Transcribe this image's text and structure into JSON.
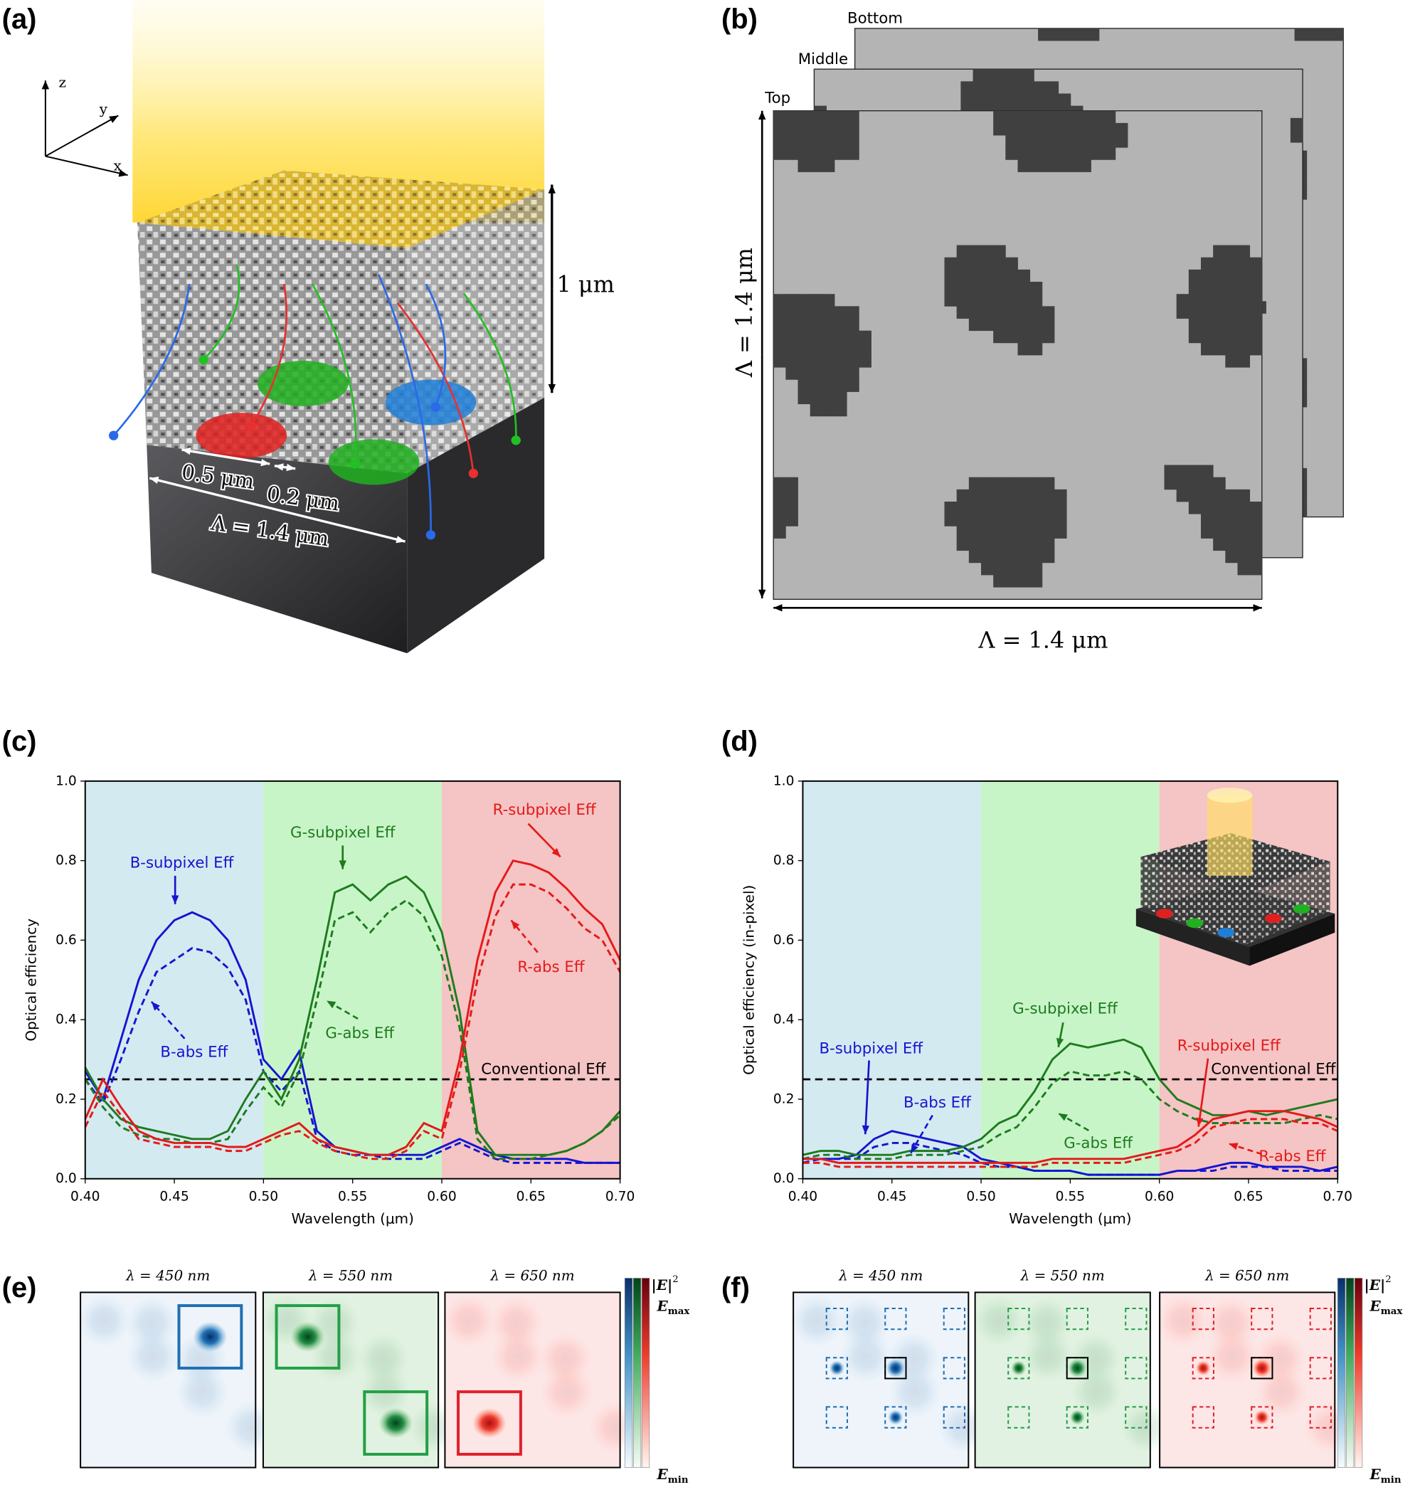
{
  "figure": {
    "a": {
      "label": "(a)",
      "axes": [
        "z",
        "y",
        "x"
      ],
      "height": "1 μm",
      "pixel": "0.5 μm",
      "gap": "0.2 μm",
      "period": "Λ = 1.4 μm"
    },
    "b": {
      "label": "(b)",
      "layers": [
        "Bottom",
        "Middle",
        "Top"
      ],
      "period_vertical": "Λ = 1.4 μm",
      "period_horizontal": "Λ = 1.4 μm"
    },
    "e": {
      "label": "(e)",
      "titles": [
        "λ =  450 nm",
        "λ =  550 nm",
        "λ =  650 nm"
      ],
      "colorbar": {
        "field": "|E|",
        "exponent": "2",
        "symbol": "E",
        "max_sub": "max",
        "min_sub": "min"
      }
    },
    "f": {
      "label": "(f)",
      "titles": [
        "λ =  450 nm",
        "λ =  550 nm",
        "λ =  650 nm"
      ],
      "colorbar": {
        "field": "|E|",
        "exponent": "2",
        "symbol": "E",
        "max_sub": "max",
        "min_sub": "min"
      }
    }
  },
  "chart_data": [
    {
      "type": "line",
      "panel_label": "(c)",
      "xlabel": "Wavelength (μm)",
      "ylabel": "Optical efficiency",
      "x": [
        0.4,
        0.41,
        0.42,
        0.43,
        0.44,
        0.45,
        0.46,
        0.47,
        0.48,
        0.49,
        0.5,
        0.51,
        0.52,
        0.53,
        0.54,
        0.55,
        0.56,
        0.57,
        0.58,
        0.59,
        0.6,
        0.61,
        0.62,
        0.63,
        0.64,
        0.65,
        0.66,
        0.67,
        0.68,
        0.69,
        0.7
      ],
      "xlim": [
        0.4,
        0.7
      ],
      "ylim": [
        0,
        1
      ],
      "xticks": [
        {
          "value": 0.4,
          "label": "0.40"
        },
        {
          "value": 0.45,
          "label": "0.45"
        },
        {
          "value": 0.5,
          "label": "0.50"
        },
        {
          "value": 0.55,
          "label": "0.55"
        },
        {
          "value": 0.6,
          "label": "0.60"
        },
        {
          "value": 0.65,
          "label": "0.65"
        },
        {
          "value": 0.7,
          "label": "0.70"
        }
      ],
      "yticks": [
        {
          "value": 0,
          "label": "0.0"
        },
        0.2,
        0.4,
        0.6,
        0.8,
        {
          "value": 1,
          "label": "1.0"
        }
      ],
      "bands": [
        {
          "from": 0.4,
          "to": 0.5,
          "color": "#d4eaf1"
        },
        {
          "from": 0.5,
          "to": 0.6,
          "color": "#c8f5c8"
        },
        {
          "from": 0.6,
          "to": 0.7,
          "color": "#f5c4c4"
        }
      ],
      "reference": {
        "value": 0.25,
        "label": "Conventional Eff",
        "color": "#000000"
      },
      "series": [
        {
          "name": "B-subpixel Eff",
          "color": "#1515d0",
          "dash": false,
          "values": [
            0.27,
            0.2,
            0.35,
            0.5,
            0.6,
            0.65,
            0.67,
            0.65,
            0.6,
            0.5,
            0.3,
            0.25,
            0.32,
            0.12,
            0.08,
            0.07,
            0.06,
            0.06,
            0.06,
            0.06,
            0.08,
            0.1,
            0.08,
            0.06,
            0.05,
            0.05,
            0.05,
            0.05,
            0.04,
            0.04,
            0.04
          ]
        },
        {
          "name": "B-abs Eff",
          "color": "#1515d0",
          "dash": true,
          "values": [
            0.25,
            0.19,
            0.3,
            0.42,
            0.52,
            0.55,
            0.58,
            0.57,
            0.53,
            0.45,
            0.27,
            0.22,
            0.27,
            0.1,
            0.07,
            0.06,
            0.06,
            0.05,
            0.05,
            0.05,
            0.07,
            0.09,
            0.07,
            0.05,
            0.04,
            0.04,
            0.04,
            0.04,
            0.04,
            0.04,
            0.04
          ]
        },
        {
          "name": "G-subpixel Eff",
          "color": "#1e7b1e",
          "dash": false,
          "values": [
            0.28,
            0.2,
            0.15,
            0.13,
            0.12,
            0.11,
            0.1,
            0.1,
            0.12,
            0.2,
            0.27,
            0.2,
            0.3,
            0.5,
            0.72,
            0.74,
            0.7,
            0.74,
            0.76,
            0.72,
            0.62,
            0.42,
            0.12,
            0.06,
            0.06,
            0.06,
            0.06,
            0.07,
            0.09,
            0.12,
            0.17
          ]
        },
        {
          "name": "G-abs Eff",
          "color": "#1e7b1e",
          "dash": true,
          "values": [
            0.25,
            0.18,
            0.13,
            0.11,
            0.1,
            0.1,
            0.09,
            0.09,
            0.1,
            0.17,
            0.23,
            0.18,
            0.27,
            0.45,
            0.65,
            0.67,
            0.62,
            0.67,
            0.7,
            0.66,
            0.56,
            0.38,
            0.1,
            0.05,
            0.05,
            0.05,
            0.06,
            0.07,
            0.09,
            0.12,
            0.16
          ]
        },
        {
          "name": "R-subpixel Eff",
          "color": "#e41a1a",
          "dash": false,
          "values": [
            0.15,
            0.25,
            0.18,
            0.12,
            0.1,
            0.09,
            0.09,
            0.09,
            0.08,
            0.08,
            0.1,
            0.12,
            0.14,
            0.1,
            0.08,
            0.07,
            0.06,
            0.06,
            0.08,
            0.14,
            0.12,
            0.3,
            0.55,
            0.72,
            0.8,
            0.79,
            0.77,
            0.73,
            0.68,
            0.64,
            0.55
          ]
        },
        {
          "name": "R-abs Eff",
          "color": "#e41a1a",
          "dash": true,
          "values": [
            0.13,
            0.22,
            0.16,
            0.1,
            0.09,
            0.08,
            0.08,
            0.08,
            0.07,
            0.07,
            0.09,
            0.11,
            0.12,
            0.09,
            0.07,
            0.06,
            0.05,
            0.05,
            0.07,
            0.12,
            0.1,
            0.27,
            0.5,
            0.66,
            0.74,
            0.74,
            0.72,
            0.68,
            0.63,
            0.6,
            0.52
          ]
        }
      ]
    },
    {
      "type": "line",
      "panel_label": "(d)",
      "xlabel": "Wavelength (μm)",
      "ylabel": "Optical efficiency (in-pixel)",
      "x": [
        0.4,
        0.41,
        0.42,
        0.43,
        0.44,
        0.45,
        0.46,
        0.47,
        0.48,
        0.49,
        0.5,
        0.51,
        0.52,
        0.53,
        0.54,
        0.55,
        0.56,
        0.57,
        0.58,
        0.59,
        0.6,
        0.61,
        0.62,
        0.63,
        0.64,
        0.65,
        0.66,
        0.67,
        0.68,
        0.69,
        0.7
      ],
      "xlim": [
        0.4,
        0.7
      ],
      "ylim": [
        0,
        1
      ],
      "xticks": [
        {
          "value": 0.4,
          "label": "0.40"
        },
        {
          "value": 0.45,
          "label": "0.45"
        },
        {
          "value": 0.5,
          "label": "0.50"
        },
        {
          "value": 0.55,
          "label": "0.55"
        },
        {
          "value": 0.6,
          "label": "0.60"
        },
        {
          "value": 0.65,
          "label": "0.65"
        },
        {
          "value": 0.7,
          "label": "0.70"
        }
      ],
      "yticks": [
        {
          "value": 0,
          "label": "0.0"
        },
        0.2,
        0.4,
        0.6,
        0.8,
        {
          "value": 1,
          "label": "1.0"
        }
      ],
      "bands": [
        {
          "from": 0.4,
          "to": 0.5,
          "color": "#d4eaf1"
        },
        {
          "from": 0.5,
          "to": 0.6,
          "color": "#c8f5c8"
        },
        {
          "from": 0.6,
          "to": 0.7,
          "color": "#f5c4c4"
        }
      ],
      "reference": {
        "value": 0.25,
        "label": "Conventional Eff",
        "color": "#000000"
      },
      "series": [
        {
          "name": "B-subpixel Eff",
          "color": "#1515d0",
          "dash": false,
          "values": [
            0.05,
            0.05,
            0.05,
            0.06,
            0.1,
            0.12,
            0.11,
            0.1,
            0.09,
            0.08,
            0.05,
            0.04,
            0.03,
            0.02,
            0.02,
            0.02,
            0.01,
            0.01,
            0.01,
            0.01,
            0.01,
            0.02,
            0.02,
            0.03,
            0.04,
            0.04,
            0.03,
            0.03,
            0.03,
            0.02,
            0.03
          ]
        },
        {
          "name": "B-abs Eff",
          "color": "#1515d0",
          "dash": true,
          "values": [
            0.04,
            0.05,
            0.05,
            0.05,
            0.08,
            0.09,
            0.09,
            0.08,
            0.07,
            0.06,
            0.04,
            0.03,
            0.03,
            0.02,
            0.02,
            0.02,
            0.01,
            0.01,
            0.01,
            0.01,
            0.01,
            0.02,
            0.02,
            0.02,
            0.03,
            0.03,
            0.03,
            0.02,
            0.02,
            0.02,
            0.02
          ]
        },
        {
          "name": "G-subpixel Eff",
          "color": "#1e7b1e",
          "dash": false,
          "values": [
            0.06,
            0.07,
            0.07,
            0.06,
            0.06,
            0.06,
            0.07,
            0.07,
            0.07,
            0.08,
            0.1,
            0.14,
            0.16,
            0.22,
            0.3,
            0.34,
            0.33,
            0.34,
            0.35,
            0.33,
            0.25,
            0.2,
            0.18,
            0.16,
            0.16,
            0.17,
            0.16,
            0.17,
            0.18,
            0.19,
            0.2
          ]
        },
        {
          "name": "G-abs Eff",
          "color": "#1e7b1e",
          "dash": true,
          "values": [
            0.05,
            0.06,
            0.06,
            0.05,
            0.05,
            0.05,
            0.06,
            0.06,
            0.06,
            0.07,
            0.08,
            0.11,
            0.13,
            0.18,
            0.24,
            0.27,
            0.26,
            0.26,
            0.27,
            0.25,
            0.2,
            0.17,
            0.15,
            0.14,
            0.14,
            0.14,
            0.14,
            0.14,
            0.15,
            0.16,
            0.15
          ]
        },
        {
          "name": "R-subpixel Eff",
          "color": "#e41a1a",
          "dash": false,
          "values": [
            0.05,
            0.05,
            0.04,
            0.04,
            0.04,
            0.04,
            0.04,
            0.04,
            0.04,
            0.04,
            0.04,
            0.04,
            0.04,
            0.04,
            0.05,
            0.05,
            0.05,
            0.05,
            0.05,
            0.06,
            0.07,
            0.08,
            0.11,
            0.15,
            0.16,
            0.17,
            0.17,
            0.17,
            0.16,
            0.15,
            0.13
          ]
        },
        {
          "name": "R-abs Eff",
          "color": "#e41a1a",
          "dash": true,
          "values": [
            0.04,
            0.04,
            0.03,
            0.03,
            0.03,
            0.03,
            0.03,
            0.03,
            0.03,
            0.03,
            0.03,
            0.03,
            0.03,
            0.03,
            0.04,
            0.04,
            0.04,
            0.04,
            0.04,
            0.05,
            0.06,
            0.07,
            0.09,
            0.13,
            0.14,
            0.15,
            0.15,
            0.15,
            0.14,
            0.14,
            0.12
          ]
        }
      ]
    }
  ]
}
